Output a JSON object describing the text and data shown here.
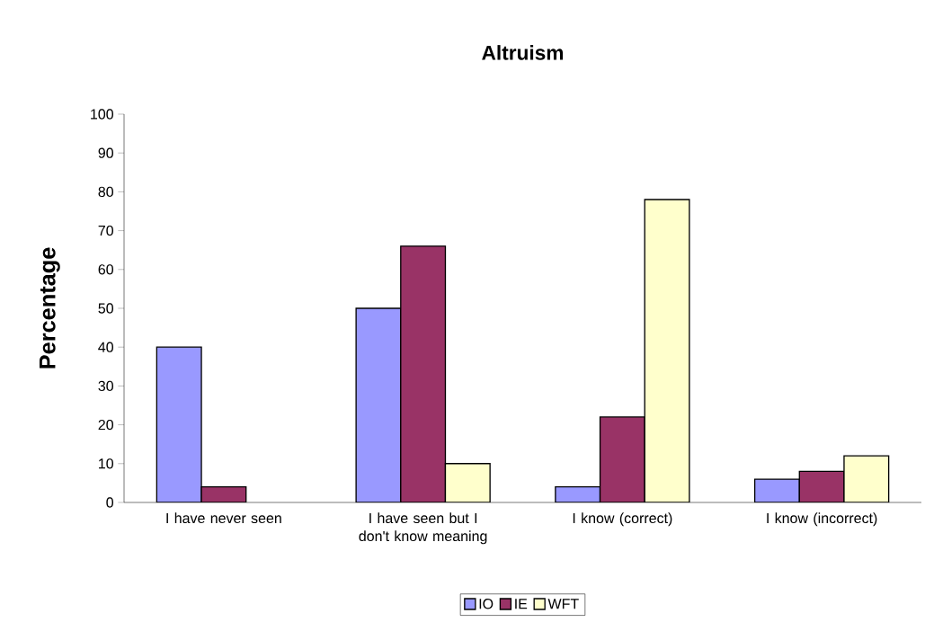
{
  "chart_data": {
    "type": "bar",
    "title": "Altruism",
    "ylabel": "Percentage",
    "categories": [
      "I have never seen",
      "I have seen but I don't know meaning",
      "I know (correct)",
      "I know (incorrect)"
    ],
    "series": [
      {
        "name": "IO",
        "color": "#9999ff",
        "values": [
          40,
          50,
          4,
          6
        ]
      },
      {
        "name": "IE",
        "color": "#993366",
        "values": [
          4,
          66,
          22,
          8
        ]
      },
      {
        "name": "WFT",
        "color": "#ffffcc",
        "values": [
          null,
          10,
          78,
          12
        ]
      }
    ],
    "ylim": [
      0,
      100
    ],
    "yticks": [
      0,
      10,
      20,
      30,
      40,
      50,
      60,
      70,
      80,
      90,
      100
    ],
    "legend": "bottom"
  }
}
